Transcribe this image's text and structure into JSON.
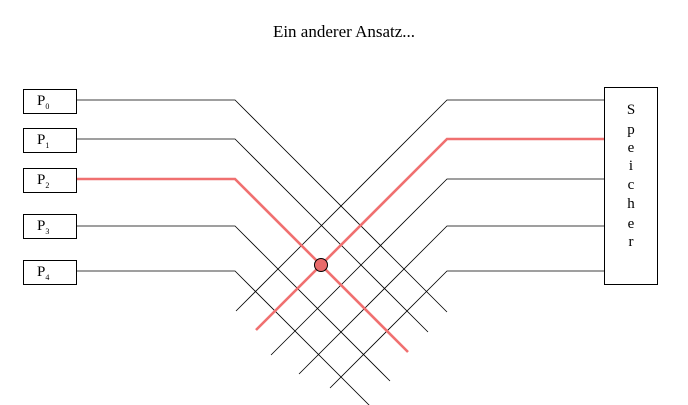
{
  "title": "Ein anderer Ansatz...",
  "processors": [
    {
      "letter": "P",
      "index": "0"
    },
    {
      "letter": "P",
      "index": "1"
    },
    {
      "letter": "P",
      "index": "2"
    },
    {
      "letter": "P",
      "index": "3"
    },
    {
      "letter": "P",
      "index": "4"
    }
  ],
  "memory": {
    "label": "Speicher",
    "letters": [
      "S",
      "p",
      "e",
      "i",
      "c",
      "h",
      "e",
      "r"
    ]
  },
  "colors": {
    "line": "#000000",
    "highlight": "#f07070",
    "node_fill": "#e86a6a"
  }
}
